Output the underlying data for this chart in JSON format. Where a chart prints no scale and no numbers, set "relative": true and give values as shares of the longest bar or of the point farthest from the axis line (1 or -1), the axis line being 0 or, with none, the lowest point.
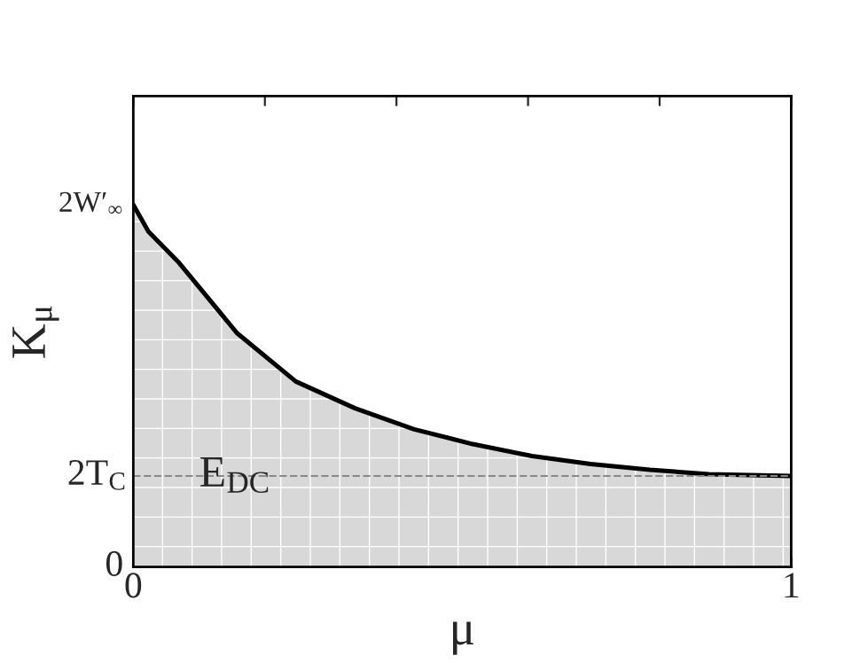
{
  "chart_data": {
    "type": "area",
    "relative": true,
    "xlabel": "μ",
    "ylabel": "K$_{μ}$",
    "x": [
      0,
      0.023,
      0.068,
      0.158,
      0.247,
      0.337,
      0.427,
      0.516,
      0.606,
      0.695,
      0.785,
      0.875,
      1
    ],
    "series": [
      {
        "color": "#000000",
        "values": [
          1.0,
          0.926,
          0.843,
          0.645,
          0.512,
          0.438,
          0.38,
          0.339,
          0.306,
          0.284,
          0.268,
          0.256,
          0.251
        ]
      }
    ],
    "xlim": [
      0,
      1
    ],
    "xticks": [
      0,
      {
        "value": 0.2,
        "label": null
      },
      {
        "value": 0.4,
        "label": null
      },
      {
        "value": 0.6,
        "label": null
      },
      {
        "value": 0.8,
        "label": null
      },
      1
    ],
    "ref_lines": [
      {
        "axis": "y",
        "value": 0.251,
        "label": "2T$_{C}$",
        "color": "#888888",
        "line_style": "dashed"
      }
    ],
    "annotations": [
      "2W′$_{∞}$",
      "0",
      "E$_{DC}$"
    ],
    "grid": false,
    "legend": false
  }
}
